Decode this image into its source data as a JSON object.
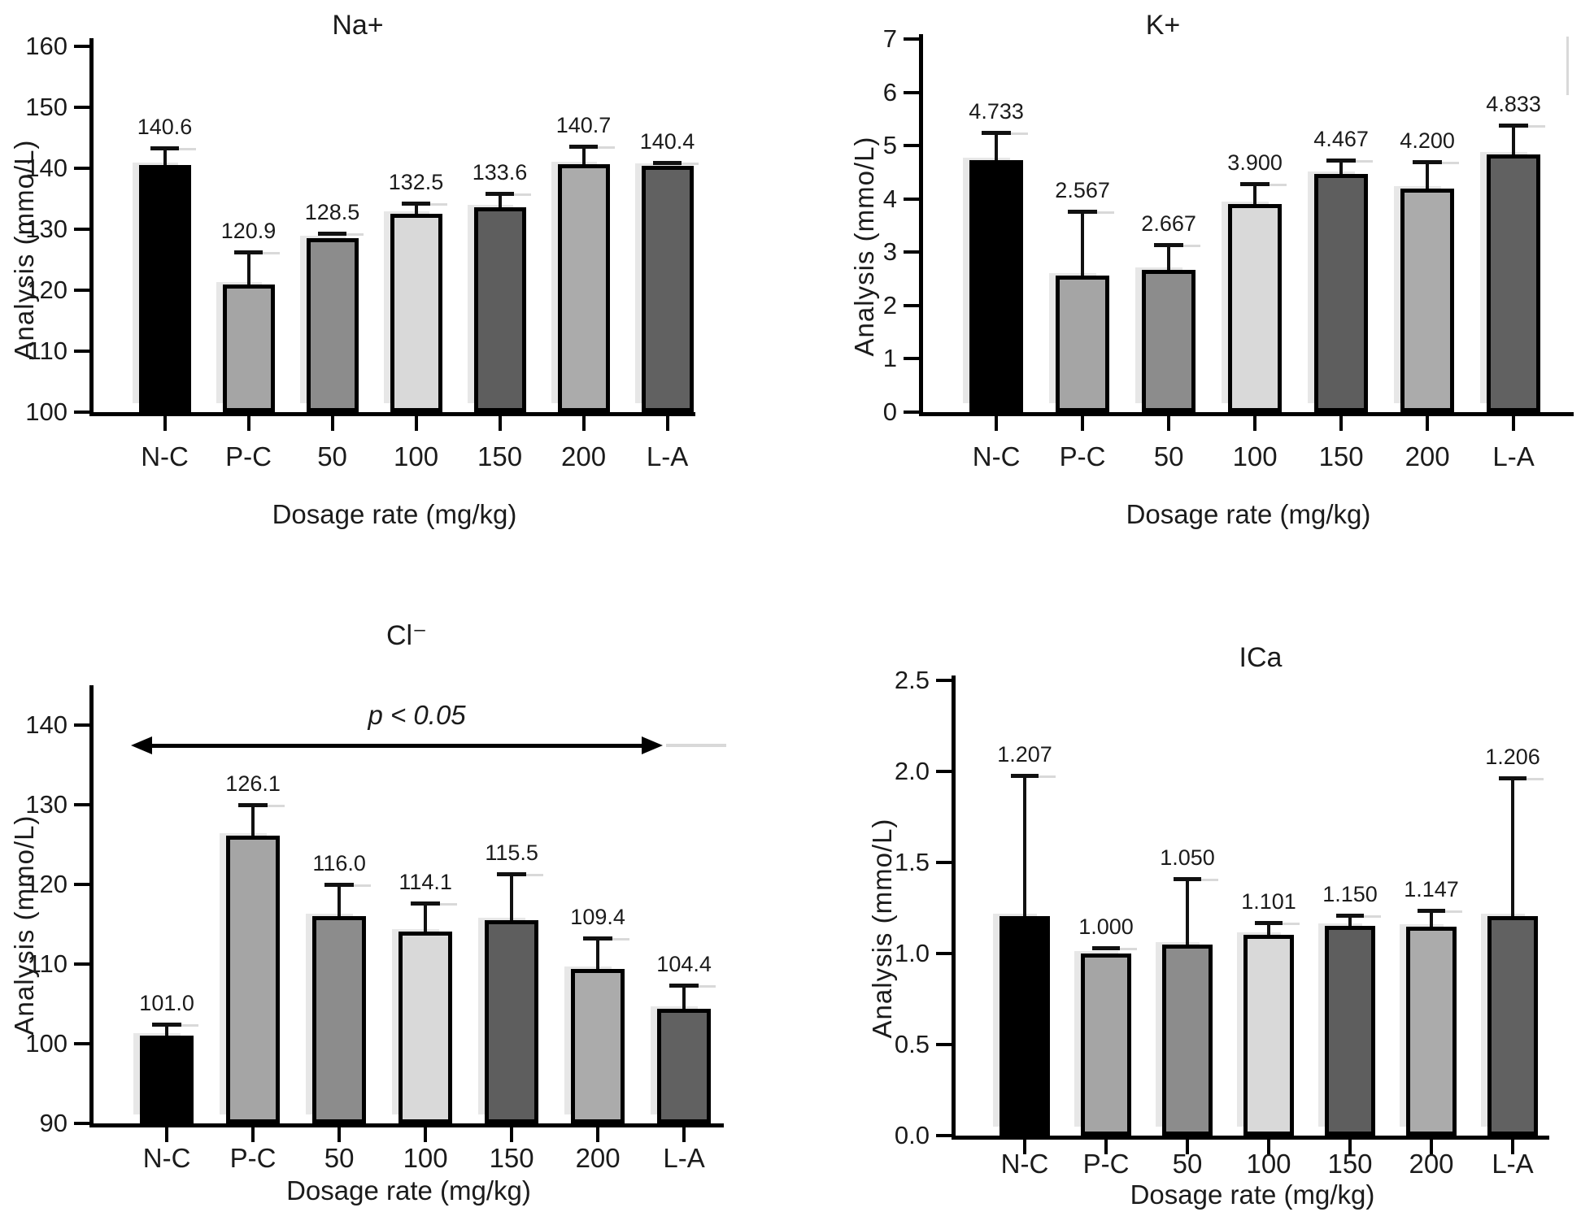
{
  "figure": {
    "background": "#ffffff"
  },
  "bar_colors": [
    "#000000",
    "#a5a5a5",
    "#8c8c8c",
    "#d9d9d9",
    "#5e5e5e",
    "#ababab",
    "#616161"
  ],
  "axis_color": "#000000",
  "text_color": "#1b1b1b",
  "chart_data": [
    {
      "key": "na",
      "type": "bar",
      "title": "Na+",
      "ylabel": "Analysis (mmo/L)",
      "xlabel": "Dosage rate (mg/kg)",
      "categories": [
        "N-C",
        "P-C",
        "50",
        "100",
        "150",
        "200",
        "L-A"
      ],
      "values": [
        140.6,
        120.9,
        128.5,
        132.5,
        133.6,
        140.7,
        140.4
      ],
      "value_labels": [
        "140.6",
        "120.9",
        "128.5",
        "132.5",
        "133.6",
        "140.7",
        "140.4"
      ],
      "errors_plus": [
        2.7,
        5.4,
        0.8,
        1.8,
        2.3,
        2.9,
        0.5
      ],
      "ylim": [
        100,
        160
      ],
      "yticks": [
        100,
        110,
        120,
        130,
        140,
        150,
        160
      ],
      "ytick_labels": [
        "100",
        "110",
        "120",
        "130",
        "140",
        "150",
        "160"
      ],
      "grid": false,
      "legend": null
    },
    {
      "key": "k",
      "type": "bar",
      "title": "K+",
      "ylabel": "Analysis (mmo/L)",
      "xlabel": "Dosage rate (mg/kg)",
      "categories": [
        "N-C",
        "P-C",
        "50",
        "100",
        "150",
        "200",
        "L-A"
      ],
      "values": [
        4.733,
        2.567,
        2.667,
        3.9,
        4.467,
        4.2,
        4.833
      ],
      "value_labels": [
        "4.733",
        "2.567",
        "2.667",
        "3.900",
        "4.467",
        "4.200",
        "4.833"
      ],
      "errors_plus": [
        0.51,
        1.2,
        0.48,
        0.39,
        0.26,
        0.49,
        0.55
      ],
      "ylim": [
        0,
        7
      ],
      "yticks": [
        0,
        1,
        2,
        3,
        4,
        5,
        6,
        7
      ],
      "ytick_labels": [
        "0",
        "1",
        "2",
        "3",
        "4",
        "5",
        "6",
        "7"
      ],
      "grid": false,
      "legend": null
    },
    {
      "key": "cl",
      "type": "bar",
      "title": "Cl⁻",
      "ylabel": "Analysis (mmo/L)",
      "xlabel": "Dosage rate (mg/kg)",
      "categories": [
        "N-C",
        "P-C",
        "50",
        "100",
        "150",
        "200",
        "L-A"
      ],
      "values": [
        101.0,
        126.1,
        116.0,
        114.1,
        115.5,
        109.4,
        104.4
      ],
      "value_labels": [
        "101.0",
        "126.1",
        "116.0",
        "114.1",
        "115.5",
        "109.4",
        "104.4"
      ],
      "errors_plus": [
        1.5,
        3.9,
        4.0,
        3.6,
        5.8,
        3.9,
        2.9
      ],
      "ylim": [
        90,
        145
      ],
      "yticks": [
        90,
        100,
        110,
        120,
        130,
        140
      ],
      "ytick_labels": [
        "90",
        "100",
        "110",
        "120",
        "130",
        "140"
      ],
      "grid": false,
      "legend": null,
      "annotation": {
        "text": "p < 0.05",
        "arrow_y": 137.4,
        "text_y": 141.2,
        "from_index": -0.42,
        "to_index": 5.75
      }
    },
    {
      "key": "ica",
      "type": "bar",
      "title": "ICa",
      "ylabel": "Analysis (mmo/L)",
      "xlabel": "Dosage rate (mg/kg)",
      "categories": [
        "N-C",
        "P-C",
        "50",
        "100",
        "150",
        "200",
        "L-A"
      ],
      "values": [
        1.207,
        1.0,
        1.05,
        1.101,
        1.15,
        1.147,
        1.206
      ],
      "value_labels": [
        "1.207",
        "1.000",
        "1.050",
        "1.101",
        "1.150",
        "1.147",
        "1.206"
      ],
      "errors_plus": [
        0.77,
        0.03,
        0.36,
        0.07,
        0.06,
        0.09,
        0.76
      ],
      "ylim": [
        0,
        2.5
      ],
      "yticks": [
        0,
        0.5,
        1.0,
        1.5,
        2.0,
        2.5
      ],
      "ytick_labels": [
        "0.0",
        "0.5",
        "1.0",
        "1.5",
        "2.0",
        "2.5"
      ],
      "grid": false,
      "legend": null
    }
  ]
}
